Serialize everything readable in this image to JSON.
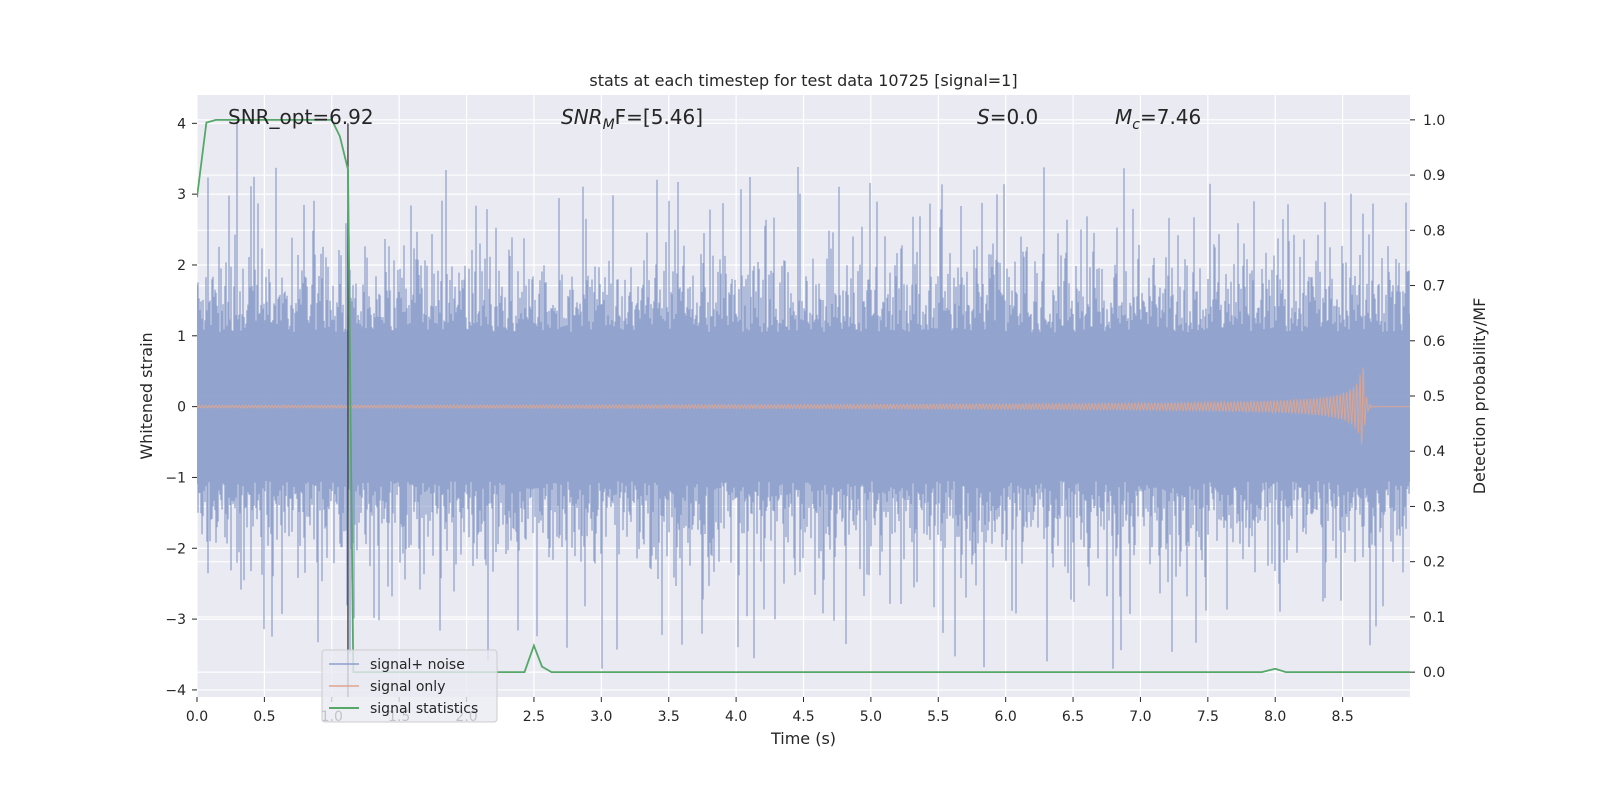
{
  "chart_data": {
    "type": "line",
    "title": "stats at each timestep for test data 10725 [signal=1]",
    "xlabel": "Time (s)",
    "ylabel": "Whitened strain",
    "ylabel_right": "Detection probability/MF",
    "xlim": [
      0,
      9.0
    ],
    "ylim": [
      -4.1,
      4.4
    ],
    "ylim_right": [
      -0.045,
      1.045
    ],
    "x_ticks": [
      0.0,
      0.5,
      1.0,
      1.5,
      2.0,
      2.5,
      3.0,
      3.5,
      4.0,
      4.5,
      5.0,
      5.5,
      6.0,
      6.5,
      7.0,
      7.5,
      8.0,
      8.5
    ],
    "x_tick_labels": [
      "0.0",
      "0.5",
      "1.0",
      "1.5",
      "2.0",
      "2.5",
      "3.0",
      "3.5",
      "4.0",
      "4.5",
      "5.0",
      "5.5",
      "6.0",
      "6.5",
      "7.0",
      "7.5",
      "8.0",
      "8.5"
    ],
    "y_ticks": [
      -4,
      -3,
      -2,
      -1,
      0,
      1,
      2,
      3,
      4
    ],
    "y_tick_labels": [
      "−4",
      "−3",
      "−2",
      "−1",
      "0",
      "1",
      "2",
      "3",
      "4"
    ],
    "y_ticks_right": [
      0.0,
      0.1,
      0.2,
      0.3,
      0.4,
      0.5,
      0.6,
      0.7,
      0.8,
      0.9,
      1.0
    ],
    "y_tick_labels_right": [
      "0.0",
      "0.1",
      "0.2",
      "0.3",
      "0.4",
      "0.5",
      "0.6",
      "0.7",
      "0.8",
      "0.9",
      "1.0"
    ],
    "grid": true,
    "legend_position": "lower-left",
    "annotations": {
      "snr_opt": "SNR_opt=6.92",
      "snr_mf_base": "SNR",
      "snr_mf_sub": "M",
      "snr_mf_rest": "F=[5.46]",
      "s_var": "S",
      "s_rest": "=0.0",
      "mc_base": "M",
      "mc_sub": "c",
      "mc_rest": "=7.46"
    },
    "vertical_line_x": 1.12,
    "series": [
      {
        "name": "signal+ noise",
        "kind": "noise",
        "color": "#8da0cb",
        "approx_amplitude_range": [
          -3.7,
          4.0
        ]
      },
      {
        "name": "signal only",
        "kind": "chirp",
        "color": "#e0a58e",
        "merger_time": 8.65,
        "peak_amplitude": 0.7
      },
      {
        "name": "signal statistics",
        "kind": "line",
        "color": "#55a868",
        "axis": "right",
        "x": [
          0.0,
          0.07,
          0.14,
          0.3,
          0.6,
          1.0,
          1.06,
          1.12,
          1.16,
          1.25,
          1.5,
          2.0,
          2.43,
          2.5,
          2.56,
          2.63,
          3.0,
          4.0,
          5.0,
          6.0,
          7.0,
          7.9,
          8.0,
          8.08,
          8.5,
          9.0
        ],
        "y": [
          0.86,
          0.995,
          1.0,
          1.0,
          1.0,
          1.0,
          0.97,
          0.91,
          0.0,
          0.0,
          0.0,
          0.0,
          0.0,
          0.048,
          0.01,
          0.0,
          0.0,
          0.0,
          0.0,
          0.0,
          0.0,
          0.0,
          0.006,
          0.0,
          0.0,
          0.0
        ]
      }
    ],
    "colors": {
      "plot_background": "#eaeaf2",
      "grid": "#ffffff",
      "vertical_line": "#444444"
    }
  }
}
